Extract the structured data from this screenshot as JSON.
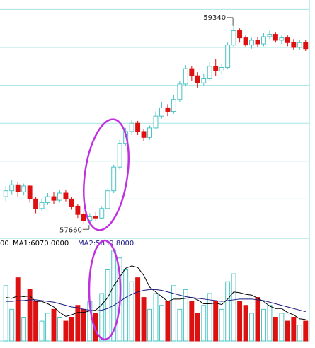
{
  "chart_data": {
    "type": "candlestick",
    "open": [
      57900,
      57950,
      58000,
      57940,
      57990,
      57880,
      57800,
      57850,
      57900,
      57870,
      57930,
      57880,
      57820,
      57750,
      57700,
      57730,
      57720,
      57800,
      57950,
      58150,
      58350,
      58450,
      58520,
      58450,
      58400,
      58480,
      58580,
      58650,
      58620,
      58720,
      58850,
      58980,
      58920,
      58860,
      58900,
      59000,
      58960,
      58990,
      59180,
      59300,
      59240,
      59180,
      59220,
      59190,
      59250,
      59270,
      59220,
      59240,
      59200,
      59160,
      59200
    ],
    "high": [
      57990,
      58040,
      58020,
      58010,
      58000,
      57900,
      57880,
      57930,
      57940,
      57960,
      57960,
      57900,
      57840,
      57780,
      57760,
      57770,
      57820,
      57970,
      58170,
      58380,
      58480,
      58550,
      58540,
      58470,
      58500,
      58620,
      58700,
      58680,
      58760,
      58880,
      59010,
      59000,
      58950,
      58940,
      59040,
      59060,
      59020,
      59200,
      59340,
      59320,
      59260,
      59240,
      59250,
      59280,
      59300,
      59290,
      59260,
      59260,
      59230,
      59220,
      59220
    ],
    "low": [
      57860,
      57920,
      57900,
      57910,
      57850,
      57760,
      57780,
      57830,
      57840,
      57850,
      57860,
      57790,
      57720,
      57670,
      57660,
      57690,
      57710,
      57790,
      57930,
      58130,
      58330,
      58420,
      58420,
      58370,
      58380,
      58470,
      58560,
      58580,
      58600,
      58700,
      58830,
      58880,
      58820,
      58840,
      58880,
      58920,
      58940,
      58980,
      59160,
      59200,
      59160,
      59150,
      59160,
      59170,
      59230,
      59200,
      59190,
      59170,
      59140,
      59140,
      59130
    ],
    "close": [
      57950,
      58000,
      57940,
      57990,
      57880,
      57800,
      57850,
      57900,
      57870,
      57930,
      57880,
      57820,
      57750,
      57700,
      57730,
      57720,
      57800,
      57950,
      58150,
      58350,
      58450,
      58520,
      58450,
      58400,
      58480,
      58580,
      58650,
      58620,
      58720,
      58850,
      58980,
      58920,
      58860,
      58900,
      59000,
      58960,
      58990,
      59180,
      59300,
      59240,
      59180,
      59220,
      59190,
      59250,
      59270,
      59220,
      59240,
      59200,
      59160,
      59200,
      59150
    ],
    "volume": [
      7000,
      4000,
      8000,
      3000,
      6500,
      5000,
      2500,
      3500,
      4000,
      3000,
      2500,
      3000,
      4500,
      4000,
      5000,
      3500,
      6000,
      9000,
      11500,
      10500,
      9000,
      7500,
      8000,
      5500,
      4000,
      6000,
      4500,
      5000,
      7000,
      4000,
      6500,
      5000,
      3500,
      4500,
      6000,
      5000,
      4000,
      7500,
      8500,
      5000,
      4500,
      3500,
      5500,
      4000,
      4500,
      3000,
      3500,
      2500,
      3000,
      2000,
      2500
    ],
    "volume_label": "00",
    "series": [
      {
        "name": "MA1:6070.0000",
        "color": "#000000",
        "values": [
          5500,
          5400,
          5700,
          5600,
          5700,
          5000,
          5000,
          4700,
          4300,
          3600,
          3100,
          3300,
          3600,
          3600,
          3800,
          3900,
          4600,
          5500,
          7000,
          8100,
          9200,
          9500,
          9300,
          8300,
          6800,
          6200,
          5600,
          5000,
          5300,
          5300,
          5400,
          5500,
          5200,
          4700,
          4700,
          4800,
          4600,
          5300,
          6200,
          6100,
          5900,
          5800,
          5400,
          5000,
          4400,
          4100,
          4100,
          3600,
          3300,
          2800,
          2700
        ]
      },
      {
        "name": "MA2:5839.8000",
        "color": "#1a1a80",
        "values": [
          5000,
          5000,
          5100,
          5100,
          5200,
          5200,
          5100,
          5000,
          4900,
          4700,
          4500,
          4300,
          4200,
          4000,
          3900,
          3800,
          3900,
          4100,
          4500,
          5000,
          5500,
          5900,
          6200,
          6400,
          6500,
          6500,
          6400,
          6200,
          6000,
          5800,
          5600,
          5500,
          5400,
          5300,
          5200,
          5100,
          5000,
          5100,
          5200,
          5300,
          5300,
          5300,
          5200,
          5100,
          4900,
          4700,
          4500,
          4300,
          4100,
          3900,
          3700
        ]
      }
    ],
    "up_color": "#4cc4c4",
    "down_color": "#dd1111",
    "ylim": [
      57560,
      59560
    ],
    "yticks": [
      57880,
      58200,
      58520,
      58840,
      59160,
      59480
    ],
    "grid": true,
    "volume_ylim": [
      0,
      12000
    ]
  }
}
